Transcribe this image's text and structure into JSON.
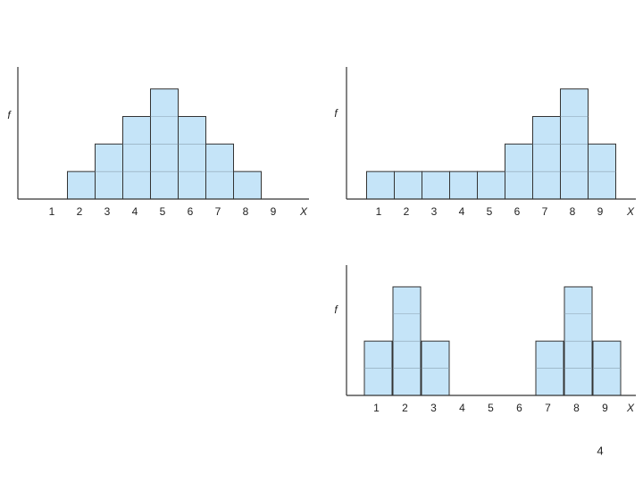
{
  "chart_data": [
    {
      "type": "bar",
      "y_label": "f",
      "x_label": "X",
      "categories": [
        "1",
        "2",
        "3",
        "4",
        "5",
        "6",
        "7",
        "8",
        "9"
      ],
      "values": [
        0,
        1,
        2,
        3,
        4,
        3,
        2,
        1,
        0
      ],
      "ylim": [
        0,
        4.8
      ],
      "color": "#c5e4f8"
    },
    {
      "type": "bar",
      "y_label": "f",
      "x_label": "X",
      "categories": [
        "1",
        "2",
        "3",
        "4",
        "5",
        "6",
        "7",
        "8",
        "9"
      ],
      "values": [
        1,
        1,
        1,
        1,
        1,
        2,
        3,
        4,
        2
      ],
      "ylim": [
        0,
        4.8
      ],
      "color": "#c5e4f8"
    },
    {
      "type": "bar",
      "y_label": "f",
      "x_label": "X",
      "categories": [
        "1",
        "2",
        "3",
        "4",
        "5",
        "6",
        "7",
        "8",
        "9"
      ],
      "values": [
        2,
        4,
        2,
        0,
        0,
        0,
        2,
        4,
        2
      ],
      "ylim": [
        0,
        4.8
      ],
      "color": "#c5e4f8"
    }
  ],
  "page_number": "4"
}
